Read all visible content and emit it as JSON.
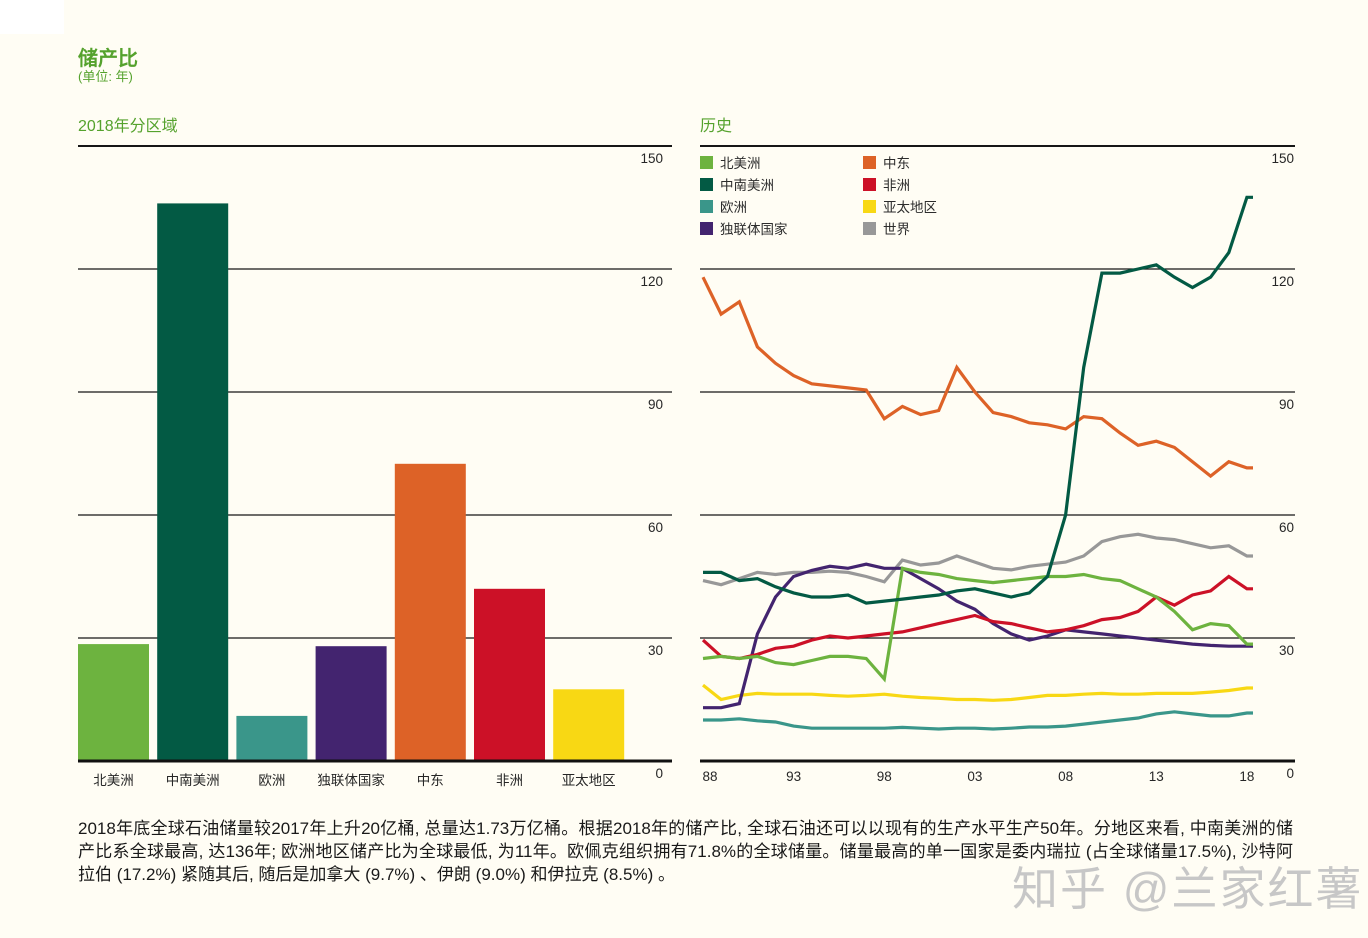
{
  "page": {
    "title": "储产比",
    "unit_note": "(单位: 年)",
    "background": "#fffdf4",
    "accent_green": "#55a22d",
    "watermark": "知乎 @兰家红薯",
    "footnote": "2018年底全球石油储量较2017年上升20亿桶, 总量达1.73万亿桶。根据2018年的储产比, 全球石油还可以以现有的生产水平生产50年。分地区来看, 中南美洲的储产比系全球最高, 达136年; 欧洲地区储产比为全球最低, 为11年。欧佩克组织拥有71.8%的全球储量。储量最高的单一国家是委内瑞拉 (占全球储量17.5%), 沙特阿拉伯 (17.2%) 紧随其后, 随后是加拿大 (9.7%) 、伊朗 (9.0%) 和伊拉克 (8.5%) 。"
  },
  "chart_data": [
    {
      "type": "bar",
      "title": "2018年分区域",
      "categories": [
        "北美洲",
        "中南美洲",
        "欧洲",
        "独联体国家",
        "中东",
        "非洲",
        "亚太地区"
      ],
      "values": [
        28.5,
        136,
        11,
        28,
        72.5,
        42,
        17.5
      ],
      "colors": [
        "#6db33f",
        "#035a44",
        "#3a968a",
        "#43246f",
        "#dd6227",
        "#cc1127",
        "#f8d814"
      ],
      "ylabel": "年",
      "ylim": [
        0,
        150
      ],
      "yticks": [
        150,
        120,
        90,
        60,
        30,
        0
      ],
      "grid": true,
      "ytick_side": "right"
    },
    {
      "type": "line",
      "title": "历史",
      "x_start_year": 1988,
      "x_end_year": 2018,
      "x_tick_years": [
        1988,
        1993,
        1998,
        2003,
        2008,
        2013,
        2018
      ],
      "x_tick_labels": [
        "88",
        "93",
        "98",
        "03",
        "08",
        "13",
        "18"
      ],
      "ylim": [
        0,
        150
      ],
      "yticks": [
        150,
        120,
        90,
        60,
        30,
        0
      ],
      "ytick_side": "right",
      "grid": true,
      "legend_position": "top-left-two-columns",
      "series": [
        {
          "name": "北美洲",
          "color": "#6db33f",
          "values": [
            25,
            25.5,
            25,
            25.5,
            24,
            23.5,
            24.5,
            25.5,
            25.5,
            25,
            20,
            47,
            46,
            45.5,
            44.5,
            44,
            43.5,
            44,
            44.5,
            45,
            45,
            45.5,
            44.5,
            44,
            42,
            40,
            36.5,
            32,
            33.5,
            33,
            28.5
          ]
        },
        {
          "name": "中南美洲",
          "color": "#035a44",
          "values": [
            46,
            46,
            44,
            44.5,
            42.5,
            41,
            40,
            40,
            40.5,
            38.5,
            39,
            39.5,
            40,
            40.5,
            41.5,
            42,
            41,
            40,
            41,
            45,
            60,
            96,
            119,
            119,
            120,
            121,
            118,
            115.5,
            118,
            124,
            137.5
          ]
        },
        {
          "name": "欧洲",
          "color": "#3a968a",
          "values": [
            10,
            10,
            10.3,
            9.8,
            9.5,
            8.5,
            8,
            8,
            8,
            8,
            8,
            8.2,
            8,
            7.8,
            8,
            8,
            7.8,
            8,
            8.3,
            8.3,
            8.5,
            9,
            9.5,
            10,
            10.5,
            11.5,
            12,
            11.5,
            11,
            11,
            11.7
          ]
        },
        {
          "name": "独联体国家",
          "color": "#43246f",
          "values": [
            13,
            13,
            14,
            31,
            40,
            45,
            46.5,
            47.5,
            47,
            48,
            47,
            47,
            44.5,
            42,
            39,
            37,
            33.5,
            31,
            29.5,
            30.5,
            32,
            31.5,
            31,
            30.5,
            30,
            29.5,
            29,
            28.5,
            28.2,
            28,
            28
          ]
        },
        {
          "name": "中东",
          "color": "#dd6227",
          "values": [
            118,
            109,
            112,
            101,
            97,
            94,
            92,
            91.5,
            91,
            90.5,
            83.5,
            86.5,
            84.5,
            85.5,
            96,
            90,
            85,
            84,
            82.5,
            82,
            81,
            84,
            83.5,
            80,
            77,
            78,
            76.5,
            73,
            69.5,
            73,
            71.5
          ]
        },
        {
          "name": "非洲",
          "color": "#cc1127",
          "values": [
            29.5,
            25.5,
            25,
            26,
            27.5,
            28,
            29.5,
            30.5,
            30,
            30.5,
            31,
            31.5,
            32.5,
            33.5,
            34.5,
            35.5,
            34,
            33.5,
            32.5,
            31.5,
            32,
            33,
            34.5,
            35,
            36.5,
            40,
            38,
            40.5,
            41.5,
            45,
            42
          ]
        },
        {
          "name": "亚太地区",
          "color": "#f8d814",
          "values": [
            18.5,
            15,
            16,
            16.5,
            16.3,
            16.3,
            16.3,
            16,
            15.8,
            16,
            16.3,
            15.8,
            15.5,
            15.3,
            15,
            15,
            14.8,
            15,
            15.5,
            16,
            16,
            16.3,
            16.5,
            16.3,
            16.3,
            16.5,
            16.5,
            16.5,
            16.8,
            17.2,
            17.8
          ]
        },
        {
          "name": "亚太地区-note",
          "color": "",
          "values": []
        },
        {
          "name": "世界",
          "color": "#989898",
          "values": [
            44,
            43,
            44.5,
            46,
            45.5,
            46,
            46,
            46.3,
            46,
            45,
            43.7,
            49,
            47.8,
            48.3,
            50,
            48.5,
            47,
            46.6,
            47.5,
            48,
            48.5,
            50,
            53.5,
            54.7,
            55.3,
            54.4,
            54,
            53,
            52,
            52.5,
            50
          ]
        }
      ],
      "draw_order": [
        "亚太地区",
        "欧洲",
        "世界",
        "独联体国家",
        "非洲",
        "中东",
        "北美洲",
        "中南美洲"
      ]
    }
  ]
}
